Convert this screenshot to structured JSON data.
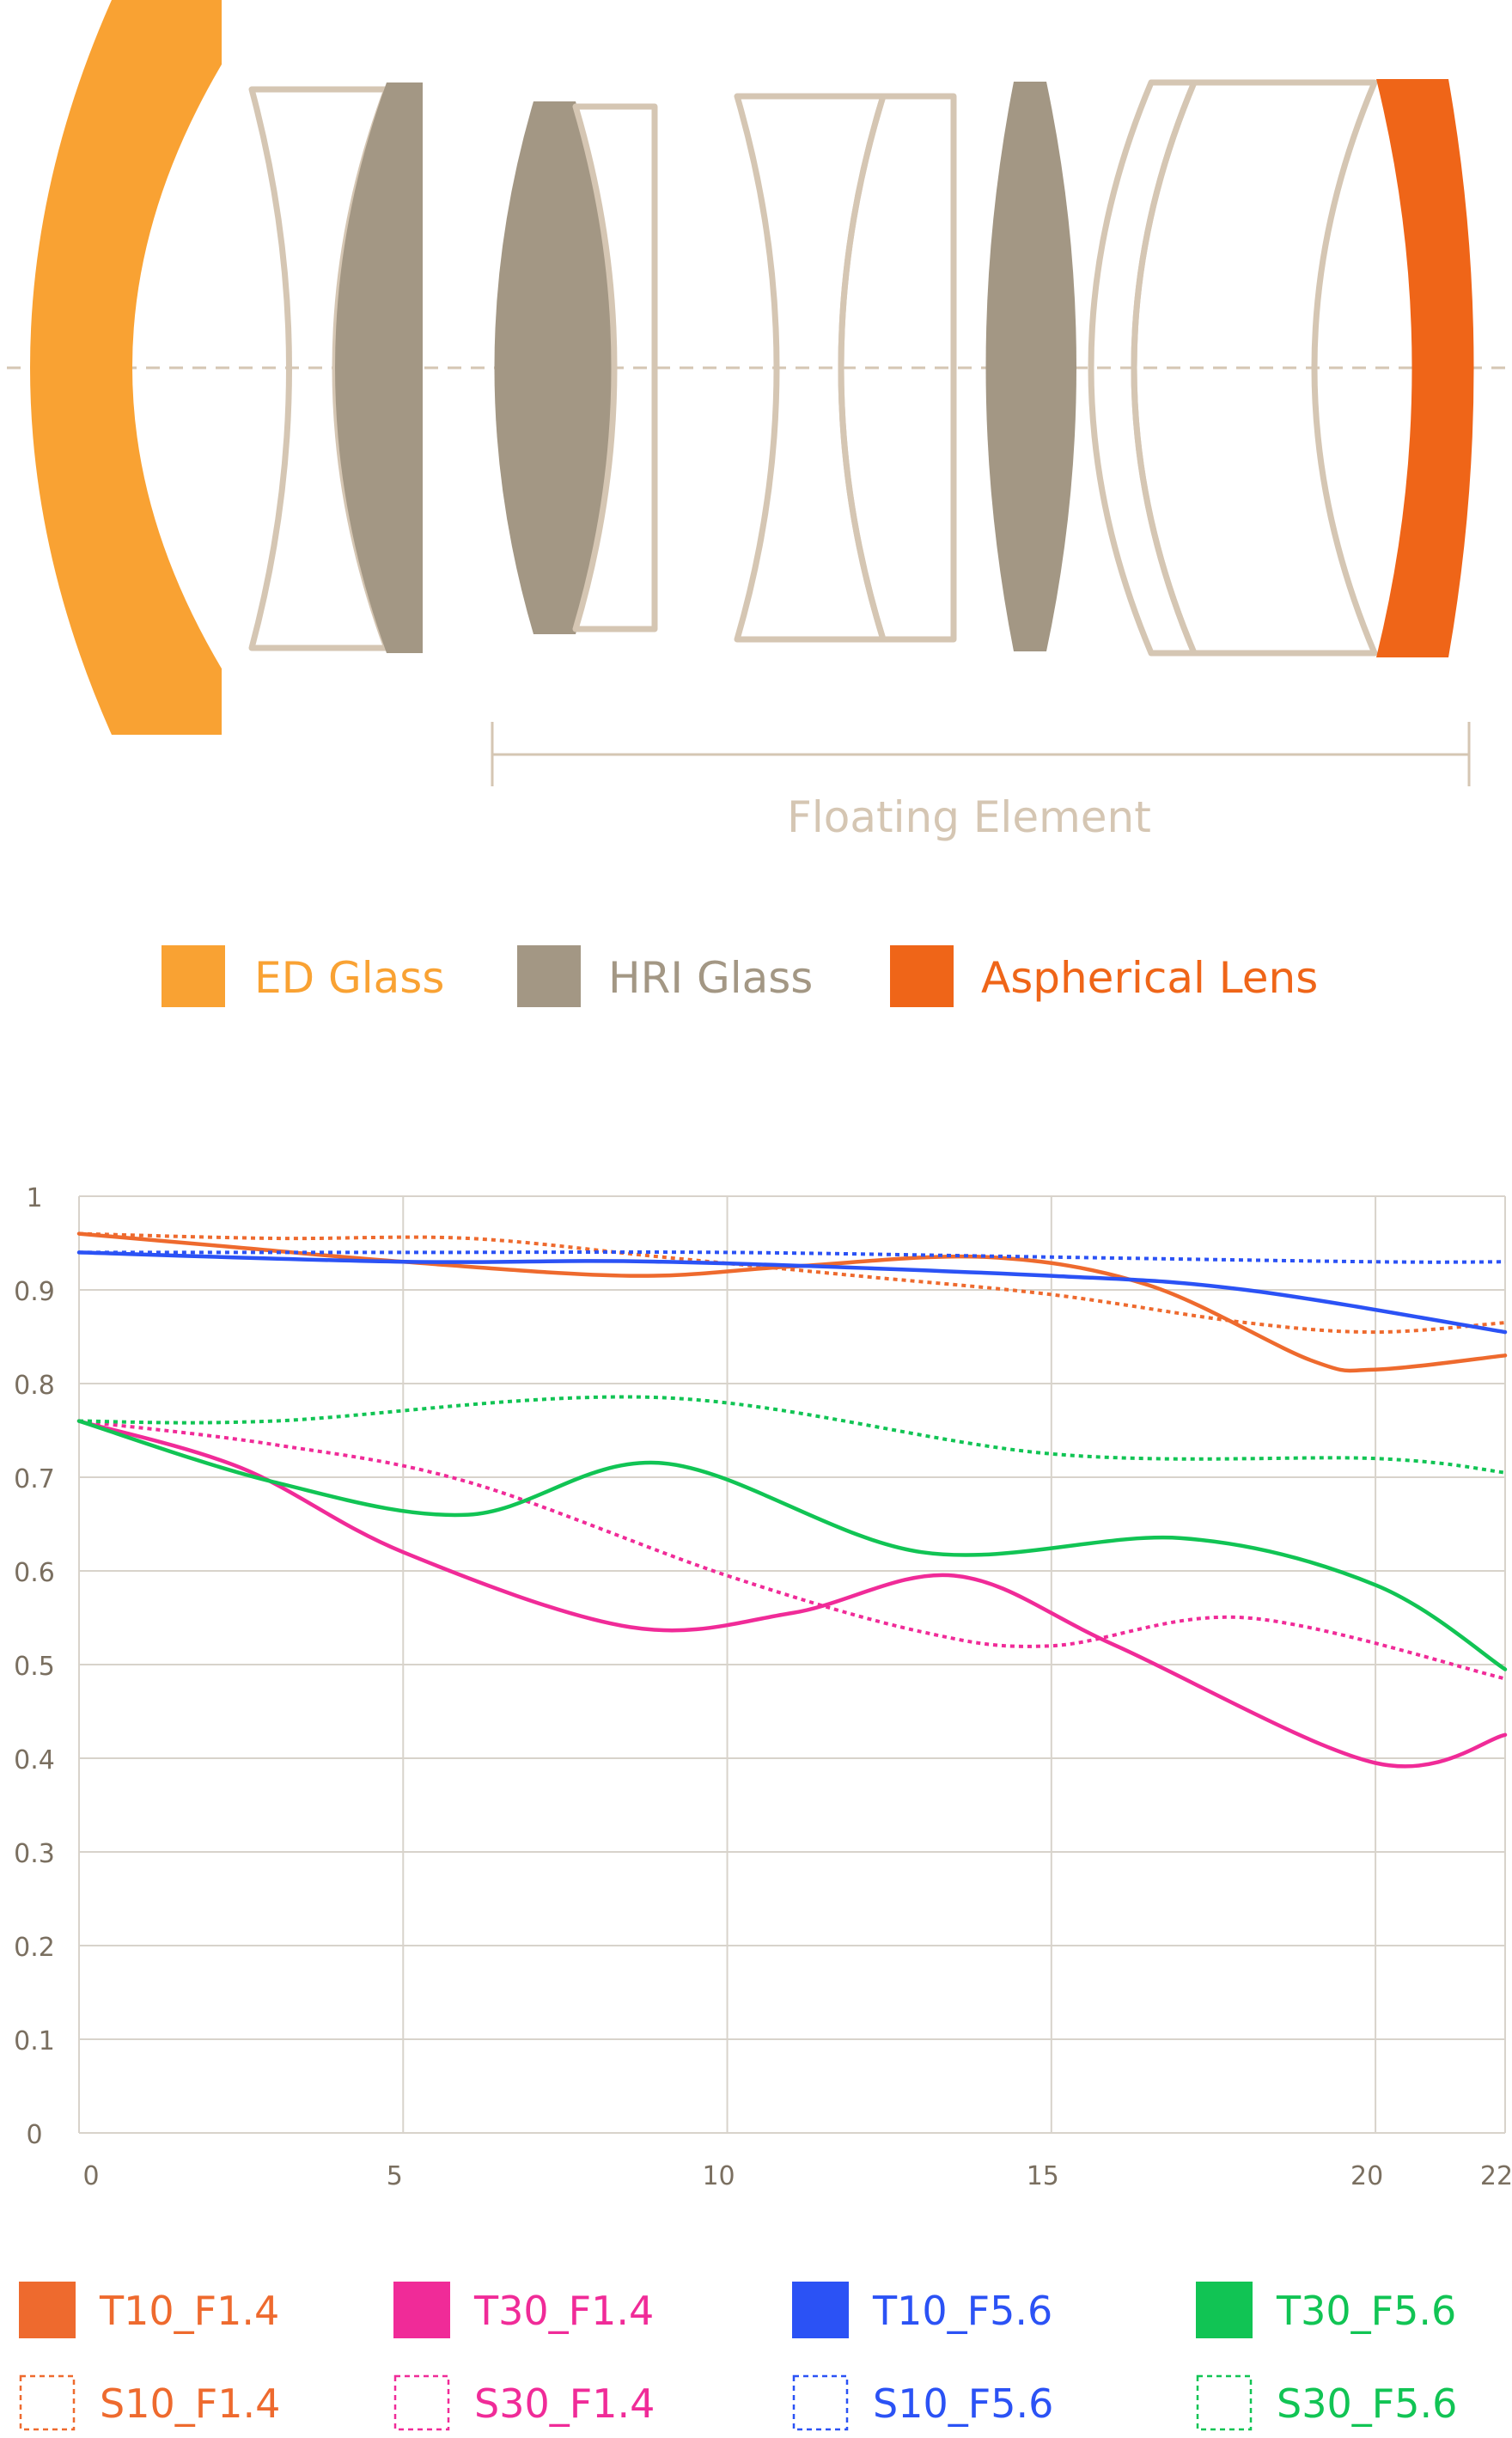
{
  "lens_diagram": {
    "floating_label": "Floating Element",
    "legend": [
      {
        "label": "ED Glass",
        "color": "#F9A233"
      },
      {
        "label": "HRI Glass",
        "color": "#A39784"
      },
      {
        "label": "Aspherical Lens",
        "color": "#EF6518"
      }
    ],
    "outline_color": "#D5C6B3"
  },
  "chart_data": {
    "type": "line",
    "title": "",
    "xlabel": "",
    "ylabel": "",
    "xlim": [
      0,
      22
    ],
    "ylim": [
      0,
      1
    ],
    "x_ticks": [
      0,
      5,
      10,
      15,
      20,
      22
    ],
    "y_ticks": [
      0,
      0.1,
      0.2,
      0.3,
      0.4,
      0.5,
      0.6,
      0.7,
      0.8,
      0.9,
      1
    ],
    "y_tick_labels": [
      "0",
      "0.1",
      "0.2",
      "0.3",
      "0.4",
      "0.5",
      "0.6",
      "0.7",
      "0.8",
      "0.9",
      "1"
    ],
    "grid": true,
    "series": [
      {
        "name": "T10_F1.4",
        "color": "#EE6A2E",
        "style": "solid",
        "x": [
          0,
          2.5,
          5,
          8.5,
          11,
          14,
          16.5,
          19,
          20,
          22
        ],
        "y": [
          0.96,
          0.945,
          0.93,
          0.915,
          0.925,
          0.935,
          0.905,
          0.825,
          0.815,
          0.83
        ]
      },
      {
        "name": "S10_F1.4",
        "color": "#EE6A2E",
        "style": "dotted",
        "x": [
          0,
          3,
          6,
          9,
          12,
          15,
          18,
          20,
          22
        ],
        "y": [
          0.96,
          0.955,
          0.955,
          0.935,
          0.915,
          0.895,
          0.865,
          0.855,
          0.865
        ]
      },
      {
        "name": "T10_F5.6",
        "color": "#2B52F5",
        "style": "solid",
        "x": [
          0,
          5,
          9,
          15,
          18,
          22
        ],
        "y": [
          0.94,
          0.93,
          0.93,
          0.915,
          0.9,
          0.855
        ]
      },
      {
        "name": "S10_F5.6",
        "color": "#2B52F5",
        "style": "dotted",
        "x": [
          0,
          5,
          10,
          15,
          20,
          22
        ],
        "y": [
          0.94,
          0.94,
          0.94,
          0.935,
          0.93,
          0.93
        ]
      },
      {
        "name": "T30_F1.4",
        "color": "#F02B98",
        "style": "solid",
        "x": [
          0,
          2.5,
          5,
          8.5,
          11,
          13.5,
          16,
          20,
          22
        ],
        "y": [
          0.76,
          0.71,
          0.62,
          0.54,
          0.555,
          0.595,
          0.52,
          0.395,
          0.425
        ]
      },
      {
        "name": "S30_F1.4",
        "color": "#F02B98",
        "style": "dotted",
        "x": [
          0,
          3,
          6,
          10,
          13,
          15,
          18,
          22
        ],
        "y": [
          0.76,
          0.735,
          0.695,
          0.595,
          0.535,
          0.52,
          0.55,
          0.485
        ]
      },
      {
        "name": "T30_F5.6",
        "color": "#11C454",
        "style": "solid",
        "x": [
          0,
          3,
          6,
          9,
          13,
          17,
          20,
          22
        ],
        "y": [
          0.76,
          0.695,
          0.66,
          0.715,
          0.62,
          0.635,
          0.585,
          0.495
        ]
      },
      {
        "name": "S30_F5.6",
        "color": "#11C454",
        "style": "dotted",
        "x": [
          0,
          3,
          9,
          15,
          20,
          22
        ],
        "y": [
          0.76,
          0.76,
          0.785,
          0.725,
          0.72,
          0.705
        ]
      }
    ],
    "legend_order": [
      "T10_F1.4",
      "T30_F1.4",
      "T10_F5.6",
      "T30_F5.6",
      "S10_F1.4",
      "S30_F1.4",
      "S10_F5.6",
      "S30_F5.6"
    ],
    "legend_position": "bottom"
  }
}
